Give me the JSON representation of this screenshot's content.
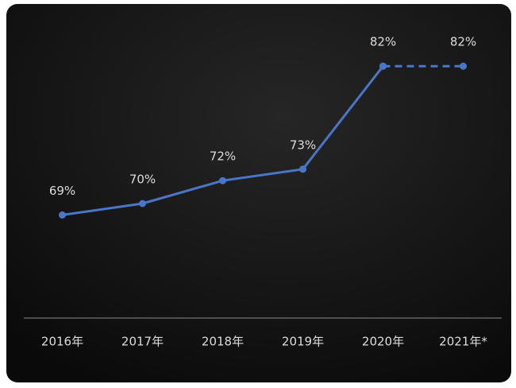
{
  "chart_data": {
    "type": "line",
    "categories": [
      "2016年",
      "2017年",
      "2018年",
      "2019年",
      "2020年",
      "2021年*"
    ],
    "series": [
      {
        "color": "#4a76c8",
        "line_style": "solid",
        "values": [
          69,
          70,
          72,
          73,
          82,
          null
        ],
        "value_labels": [
          "69%",
          "70%",
          "72%",
          "73%",
          "82%",
          null
        ]
      },
      {
        "color": "#4a76c8",
        "line_style": "dashed",
        "values": [
          null,
          null,
          null,
          null,
          82,
          82
        ],
        "value_labels": [
          null,
          null,
          null,
          null,
          null,
          "82%"
        ]
      }
    ],
    "ylim": [
      60,
      85
    ]
  }
}
